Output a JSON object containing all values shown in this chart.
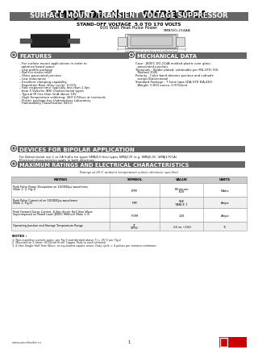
{
  "title": "SMBJ5.0A  thru  SMBJ170CA",
  "subtitle": "SURFACE MOUNT TRANSIENT VOLTAGE SUPPRESSOR",
  "subtitle2": "STAND-OFF VOLTAGE  5.0 TO 170 VOLTS",
  "subtitle3": "600 Watt Peak Pulse Power",
  "pkg_label": "SMB/DO-214AA",
  "features_title": "FEATURES",
  "features": [
    "For surface mount applications in order to\n  optimize board space",
    "Low profile package",
    "Built-in strain relief",
    "Glass passivated junction",
    "Low inductance",
    "Excellent clamping capability",
    "Repetition Rate (duty cycle): 0.01%",
    "Fast response time: typically less than 1.0ps\n  from 0 Volts/ns (BR) Unidirectional types",
    "Typical IR less than 1mA above 10V",
    "High Temperature soldering: 260°C/10sec at terminals",
    "Plastic package has Underwriters Laboratory\n  Flammability Classification 94V-0"
  ],
  "mech_title": "MECHANICAL DATA",
  "mech": [
    "Case : JEDEC DO-214A molded plastic over glass\n  passivated junction",
    "Terminals : Solder plated, solderable per MIL-STD-750,\n  Method 2026",
    "Polarity : Color band denotes positive and cathode\n  except Bidirectional",
    "Standard Package : 7.5mm tape (EIA STD EIA-481)\n  Weight: 0.003 ounce, 0.97G/unit"
  ],
  "bipolar_title": "DEVICES FOR BIPOLAR APPLICATION",
  "bipolar_text1": "For Bidirectional use C or CA Suffix for types SMBJ5.0 thru types SMBJ170 (e.g. SMBJ5.0C, SMBJ170CA)",
  "bipolar_text2": "Electrical characteristics apply in both directions",
  "table_title": "MAXIMUM RATINGS AND ELECTRICAL CHARACTERISTICS",
  "table_note": "Ratings at 25°C ambient temperature unless otherwise specified",
  "table_headers": [
    "RATING",
    "SYMBOL",
    "VALUE",
    "UNITS"
  ],
  "table_rows": [
    [
      "Peak Pulse Power Dissipation on 10/1000μs waveforms\n(Note 1, 2, Fig.1)",
      "PPM",
      "Minimum\n600",
      "Watts"
    ],
    [
      "Peak Pulse Current of on 10/1000μs waveforms\n(Note 1, Fig.2)",
      "IPM",
      "SEE\nTABLE 1",
      "Amps"
    ],
    [
      "Peak Forward Surge Current, 8.3ms Single Half Sine Wave\nSuperimposed on Rated Load (JEDEC Method) (Note 2,3)",
      "IFSM",
      "100",
      "Amps"
    ],
    [
      "Operating Junction and Storage Temperature Range",
      "TJ\nTSTG",
      "-55 to +150",
      "°C"
    ]
  ],
  "notes_title": "NOTES :",
  "notes": [
    "1. Non-repetitive current pulse, per Fig.3 and derated above Tj = 25°C per Fig.2",
    "2. Mounted on 5.0mm² (0.02mm thick) Copper Pads to each terminal",
    "3. 8.3ms Single Half Sine Wave, or equivalent square wave, Duty cycle = 4 pulses per minutes minimum."
  ],
  "footer_url": "www.paceleader.ru",
  "footer_page": "1",
  "bg_color": "#ffffff",
  "section_bg": "#666666",
  "table_header_bg": "#cccccc",
  "table_border": "#aaaaaa"
}
